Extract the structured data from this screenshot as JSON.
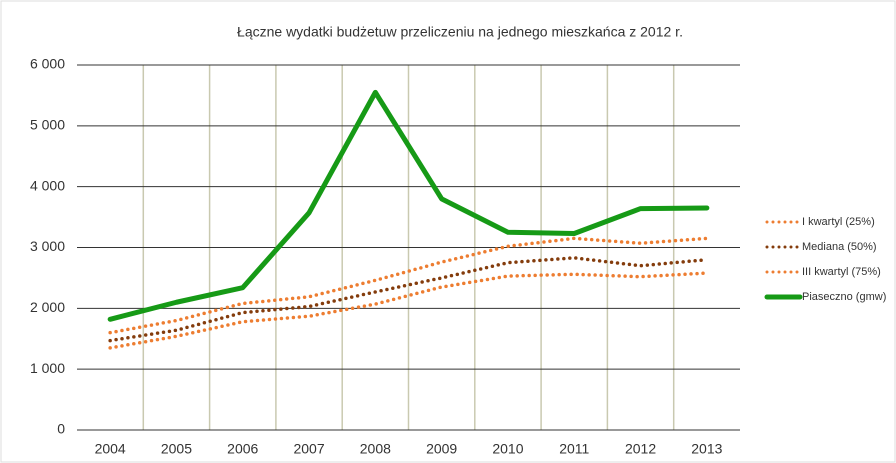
{
  "chart_data": {
    "type": "line",
    "title": "Łączne wydatki budżetuw przeliczeniu na jednego mieszkańca z 2012 r.",
    "categories": [
      "2004",
      "2005",
      "2006",
      "2007",
      "2008",
      "2009",
      "2010",
      "2011",
      "2012",
      "2013"
    ],
    "series": [
      {
        "name": "I kwartyl (25%)",
        "color": "#ed7d31",
        "style": "dotted",
        "values": [
          1350,
          1540,
          1780,
          1870,
          2070,
          2350,
          2530,
          2560,
          2520,
          2580
        ]
      },
      {
        "name": "Mediana (50%)",
        "color": "#843c0c",
        "style": "dotted",
        "values": [
          1470,
          1640,
          1930,
          2030,
          2270,
          2500,
          2750,
          2830,
          2700,
          2800
        ]
      },
      {
        "name": "III kwartyl (75%)",
        "color": "#ed7d31",
        "style": "dotted",
        "values": [
          1600,
          1800,
          2080,
          2190,
          2460,
          2760,
          3020,
          3150,
          3070,
          3150
        ]
      },
      {
        "name": "Piaseczno (gmw)",
        "color": "#169a16",
        "style": "solid",
        "values": [
          1820,
          2100,
          2340,
          3570,
          5550,
          3800,
          3250,
          3230,
          3640,
          3650
        ]
      }
    ],
    "ylim": [
      0,
      6000
    ],
    "yticks": [
      0,
      {
        "value": 1000,
        "label": "1 000"
      },
      {
        "value": 2000,
        "label": "2 000"
      },
      {
        "value": 3000,
        "label": "3 000"
      },
      {
        "value": 4000,
        "label": "4 000"
      },
      {
        "value": 5000,
        "label": "5 000"
      },
      {
        "value": 6000,
        "label": "6 000"
      }
    ],
    "grid": true,
    "legend": "right"
  }
}
